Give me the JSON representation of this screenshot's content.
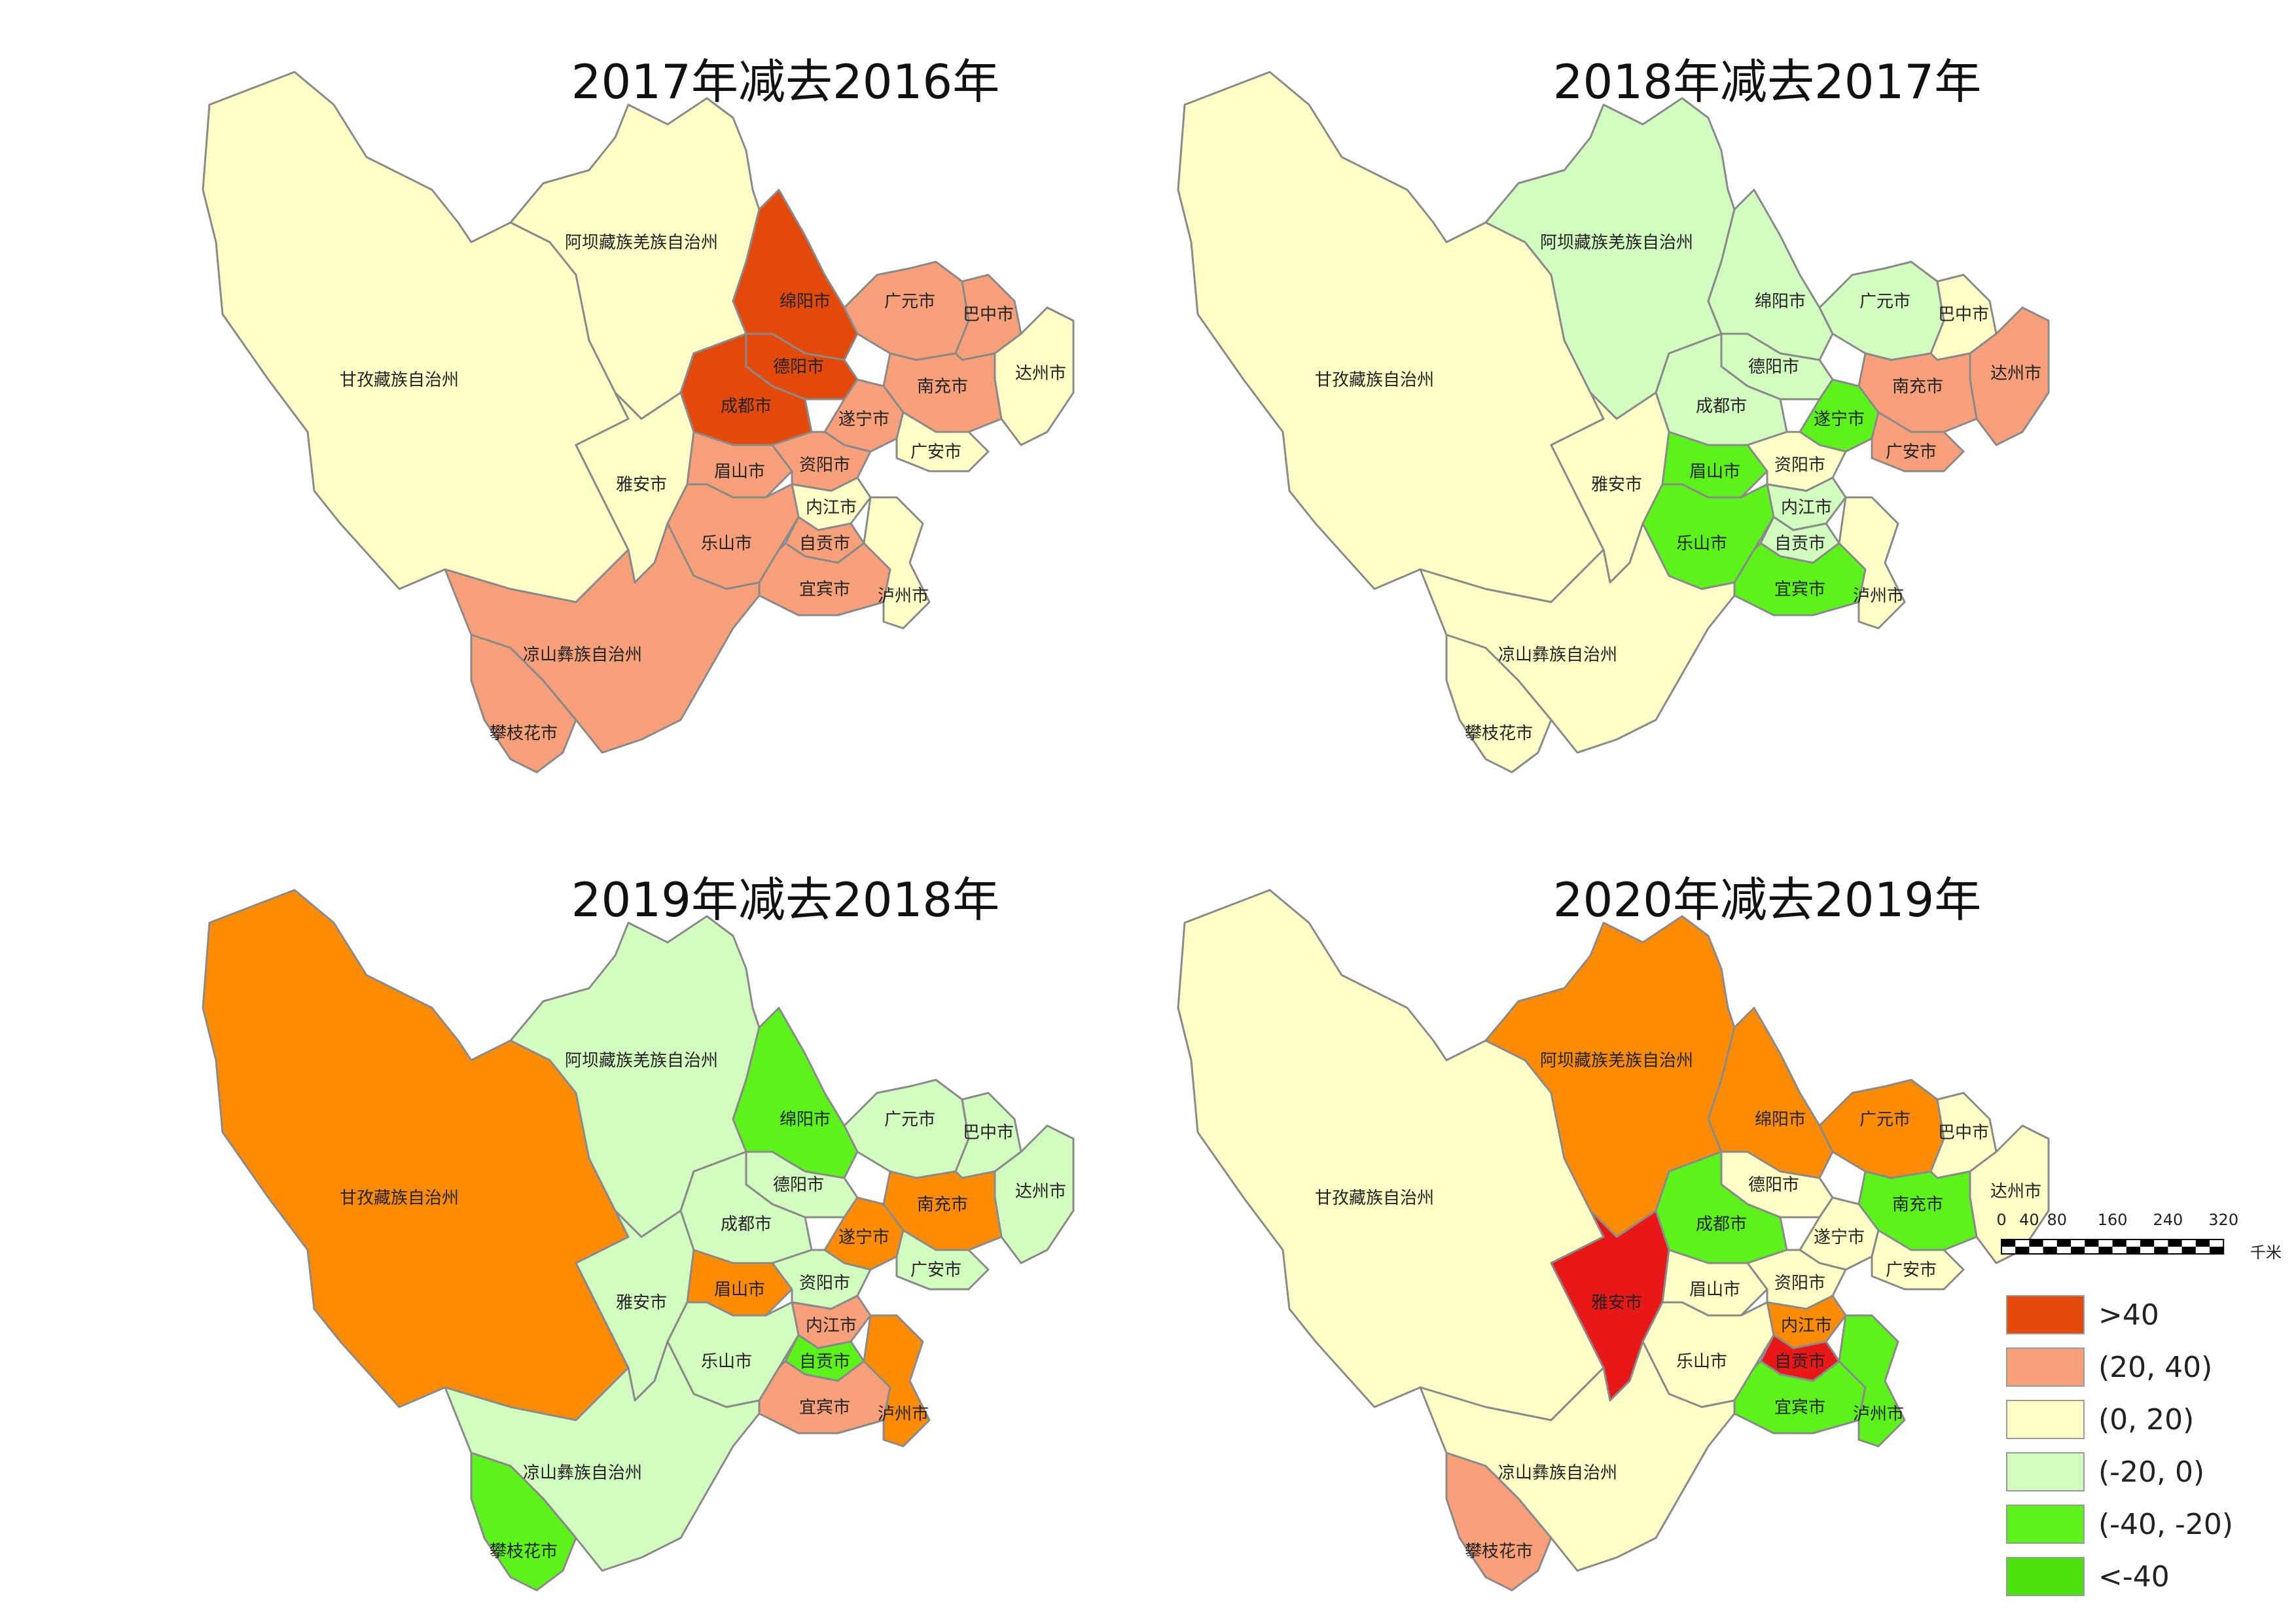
{
  "legend": {
    "classes": [
      {
        "key": "c1",
        "label": ">40",
        "color": "#E34A0A"
      },
      {
        "key": "c2",
        "label": "(20, 40)",
        "color": "#F7A07A"
      },
      {
        "key": "c3",
        "label": "(0, 20)",
        "color": "#FFFFC6"
      },
      {
        "key": "c4",
        "label": "(-20, 0)",
        "color": "#D3FCC0"
      },
      {
        "key": "c5",
        "label": "(-40, -20)",
        "color": "#5CF31B"
      },
      {
        "key": "c6",
        "label": "<-40",
        "color": "#4CE00F"
      }
    ],
    "extra_colors": {
      "dark_orange": "#FF8C00",
      "red": "#E81818"
    }
  },
  "scale_bar": {
    "ticks": [
      "0",
      "40",
      "80",
      "160",
      "240",
      "320"
    ],
    "unit": "千米"
  },
  "maps": [
    {
      "title": "2017年减去2016年",
      "regions": {
        "ganzi": "c3",
        "aba": "c3",
        "mianyang": "c1",
        "guangyuan": "c2",
        "bazhong": "c2",
        "dazhou": "c3",
        "nanchong": "c2",
        "deyang": "c1",
        "chengdu": "c1",
        "suining": "c2",
        "guangan": "c3",
        "yaan": "c3",
        "meishan": "c2",
        "ziyang": "c2",
        "neijiang": "c3",
        "leshan": "c2",
        "zigong": "c2",
        "yibin": "c2",
        "luzhou": "c3",
        "liangshan": "c2",
        "panzhihua": "c2"
      }
    },
    {
      "title": "2018年减去2017年",
      "regions": {
        "ganzi": "c3",
        "aba": "c4",
        "mianyang": "c4",
        "guangyuan": "c4",
        "bazhong": "c3",
        "dazhou": "c2",
        "nanchong": "c2",
        "deyang": "c4",
        "chengdu": "c4",
        "suining": "c5",
        "guangan": "c2",
        "yaan": "c3",
        "meishan": "c5",
        "ziyang": "c3",
        "neijiang": "c4",
        "leshan": "c5",
        "zigong": "c4",
        "yibin": "c5",
        "luzhou": "c3",
        "liangshan": "c3",
        "panzhihua": "c3"
      }
    },
    {
      "title": "2019年减去2018年",
      "regions": {
        "ganzi": "dark_orange",
        "aba": "c4",
        "mianyang": "c5",
        "guangyuan": "c4",
        "bazhong": "c4",
        "dazhou": "c4",
        "nanchong": "dark_orange",
        "deyang": "c4",
        "chengdu": "c4",
        "suining": "dark_orange",
        "guangan": "c4",
        "yaan": "c4",
        "meishan": "dark_orange",
        "ziyang": "c4",
        "neijiang": "c2",
        "leshan": "c4",
        "zigong": "c5",
        "yibin": "c2",
        "luzhou": "dark_orange",
        "liangshan": "c4",
        "panzhihua": "c5"
      }
    },
    {
      "title": "2020年减去2019年",
      "regions": {
        "ganzi": "c3",
        "aba": "dark_orange",
        "mianyang": "dark_orange",
        "guangyuan": "dark_orange",
        "bazhong": "c3",
        "dazhou": "c3",
        "nanchong": "c5",
        "deyang": "c3",
        "chengdu": "c5",
        "suining": "c3",
        "guangan": "c3",
        "yaan": "red",
        "meishan": "c3",
        "ziyang": "c3",
        "neijiang": "dark_orange",
        "leshan": "c3",
        "zigong": "red",
        "yibin": "c5",
        "luzhou": "c5",
        "liangshan": "c3",
        "panzhihua": "c2"
      }
    }
  ],
  "region_names": {
    "ganzi": "甘孜藏族自治州",
    "aba": "阿坝藏族羌族自治州",
    "mianyang": "绵阳市",
    "guangyuan": "广元市",
    "bazhong": "巴中市",
    "dazhou": "达州市",
    "nanchong": "南充市",
    "deyang": "德阳市",
    "chengdu": "成都市",
    "suining": "遂宁市",
    "guangan": "广安市",
    "yaan": "雅安市",
    "meishan": "眉山市",
    "ziyang": "资阳市",
    "neijiang": "内江市",
    "leshan": "乐山市",
    "zigong": "自贡市",
    "yibin": "宜宾市",
    "luzhou": "泸州市",
    "liangshan": "凉山彝族自治州",
    "panzhihua": "攀枝花市"
  }
}
